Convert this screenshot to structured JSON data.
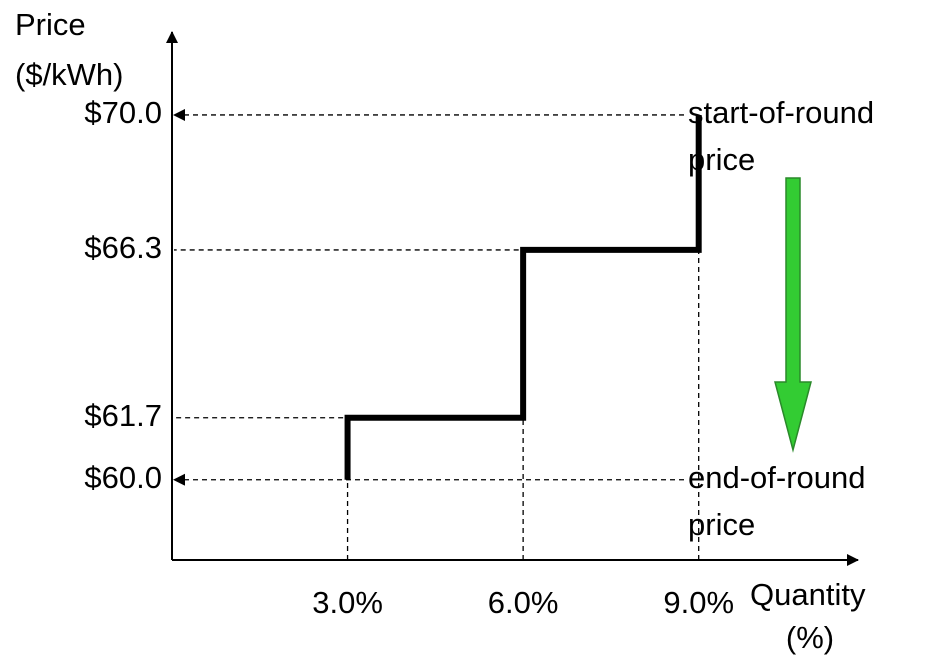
{
  "chart_data": {
    "type": "line",
    "y_label": [
      "Price",
      "($/kWh)"
    ],
    "x_label": [
      "Quantity",
      "(%)"
    ],
    "xlim": [
      0,
      11.5
    ],
    "ylim": [
      57.8,
      72
    ],
    "xticks": [
      {
        "value": 3.0,
        "label": "3.0%"
      },
      {
        "value": 6.0,
        "label": "6.0%"
      },
      {
        "value": 9.0,
        "label": "9.0%"
      }
    ],
    "yticks": [
      {
        "value": 60.0,
        "label": "$60.0"
      },
      {
        "value": 61.7,
        "label": "$61.7"
      },
      {
        "value": 66.3,
        "label": "$66.3"
      },
      {
        "value": 70.0,
        "label": "$70.0"
      }
    ],
    "series": [
      {
        "color": "#000000",
        "x": [
          3.0,
          3.0,
          6.0,
          6.0,
          9.0,
          9.0
        ],
        "values": [
          60.0,
          61.7,
          61.7,
          66.3,
          66.3,
          70.0
        ]
      }
    ],
    "annotations": [
      {
        "y": 70.0,
        "text": [
          "start-of-round",
          "price"
        ]
      },
      {
        "y": 60.0,
        "text": [
          "end-of-round",
          "price"
        ]
      }
    ]
  }
}
